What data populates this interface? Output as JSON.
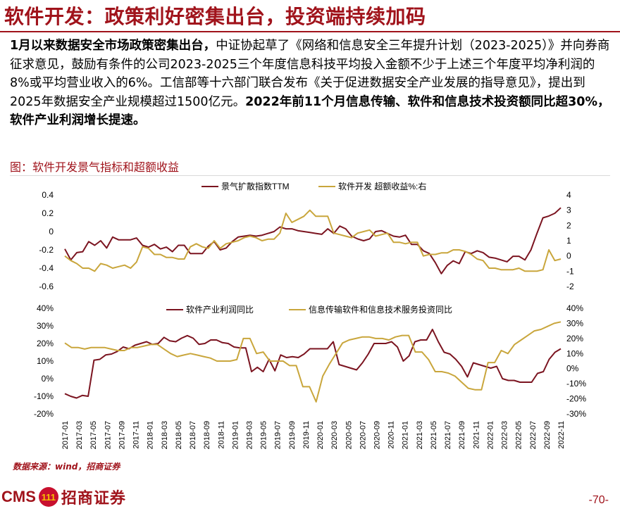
{
  "slide": {
    "title": "软件开发：政策利好密集出台，投资端持续加码",
    "paragraph": [
      {
        "text": "1月以来数据安全市场政策密集出台，",
        "bold": true
      },
      {
        "text": "中证协起草了《网络和信息安全三年提升计划（2023-2025）》并向券商征求意见，鼓励有条件的公司2023-2025三个年度信息科技平均投入金额不少于上述三个年度平均净利润的8%或平均营业收入的6%。工信部等十六部门联合发布《关于促进数据安全产业发展的指导意见》，提出到2025年数据安全产业规模超过1500亿元。",
        "bold": false
      },
      {
        "text": "2022年前11个月信息传输、软件和信息技术投资额同比超30%，软件产业利润增长提速。",
        "bold": true
      }
    ],
    "figure_label": "图：软件开发景气指标和超额收益",
    "source": "数据来源：wind，招商证券",
    "logo": {
      "cms": "CMS",
      "seal": "111",
      "cn": "招商证券"
    },
    "page_number": "-70-"
  },
  "colors": {
    "brand": "#a0131b",
    "series_dark": "#7b1420",
    "series_gold": "#c9a63c",
    "grid": "#d9d9d9"
  },
  "x_labels": [
    "2017-01",
    "2017-03",
    "2017-05",
    "2017-07",
    "2017-09",
    "2017-11",
    "2018-01",
    "2018-03",
    "2018-05",
    "2018-07",
    "2018-09",
    "2018-11",
    "2019-01",
    "2019-03",
    "2019-05",
    "2019-07",
    "2019-09",
    "2019-11",
    "2020-01",
    "2020-03",
    "2020-05",
    "2020-07",
    "2020-09",
    "2020-11",
    "2021-01",
    "2021-03",
    "2021-05",
    "2021-07",
    "2021-09",
    "2021-11",
    "2022-01",
    "2022-03",
    "2022-05",
    "2022-07",
    "2022-09",
    "2022-11"
  ],
  "chart_data": [
    {
      "type": "line",
      "yticks_left": [
        "0.4",
        "0.2",
        "0",
        "-0.2",
        "-0.4",
        "-0.6"
      ],
      "yticks_right": [
        "4",
        "3",
        "2",
        "1",
        "0",
        "-1",
        "-2"
      ],
      "ylim_left": [
        -0.6,
        0.4
      ],
      "ylim_right": [
        -2,
        4
      ],
      "legend": "top",
      "series": [
        {
          "name": "景气扩散指数TTM",
          "axis": "left",
          "color": "#7b1420",
          "values": [
            -0.19,
            -0.31,
            -0.23,
            -0.22,
            -0.11,
            -0.15,
            -0.1,
            -0.18,
            -0.06,
            -0.09,
            -0.09,
            -0.09,
            -0.07,
            -0.15,
            -0.17,
            -0.14,
            -0.19,
            -0.17,
            -0.22,
            -0.15,
            -0.15,
            -0.24,
            -0.24,
            -0.24,
            -0.16,
            -0.11,
            -0.2,
            -0.18,
            -0.11,
            -0.06,
            -0.05,
            -0.04,
            -0.05,
            -0.04,
            -0.02,
            0.0,
            0.05,
            0.03,
            0.03,
            0.01,
            0.0,
            -0.01,
            -0.02,
            -0.03,
            0.03,
            -0.02,
            0.06,
            0.03,
            -0.05,
            -0.08,
            -0.1,
            -0.08,
            0.0,
            0.01,
            -0.02,
            -0.05,
            -0.06,
            -0.04,
            -0.14,
            -0.14,
            -0.21,
            -0.24,
            -0.34,
            -0.46,
            -0.37,
            -0.32,
            -0.35,
            -0.22,
            -0.24,
            -0.21,
            -0.23,
            -0.28,
            -0.29,
            -0.31,
            -0.33,
            -0.27,
            -0.27,
            -0.31,
            -0.2,
            -0.02,
            0.15,
            0.17,
            0.2,
            0.26
          ]
        },
        {
          "name": "软件开发 超额收益%:右",
          "axis": "right",
          "color": "#c9a63c",
          "values": [
            0.0,
            -0.3,
            -0.5,
            -0.8,
            -0.8,
            -1.0,
            -0.5,
            -0.6,
            -0.8,
            -0.7,
            -0.6,
            -0.8,
            -0.4,
            0.6,
            0.5,
            0.1,
            0.1,
            -0.1,
            -0.1,
            -0.2,
            -0.2,
            0.6,
            0.8,
            0.6,
            0.5,
            1.0,
            0.5,
            0.8,
            0.9,
            1.0,
            1.2,
            1.3,
            1.2,
            1.0,
            1.1,
            1.1,
            1.5,
            2.8,
            2.2,
            2.4,
            2.6,
            3.0,
            2.6,
            2.6,
            2.6,
            1.5,
            1.4,
            1.3,
            1.2,
            1.5,
            1.6,
            1.7,
            1.3,
            1.4,
            1.5,
            0.9,
            0.9,
            0.8,
            0.9,
            0.9,
            0.0,
            0.1,
            0.1,
            0.2,
            0.2,
            0.4,
            0.4,
            0.3,
            0.1,
            -0.2,
            -0.3,
            -0.8,
            -0.8,
            -0.9,
            -0.9,
            -0.9,
            -0.8,
            -1.0,
            -1.0,
            -1.0,
            -0.9,
            0.4,
            -0.3,
            -0.2
          ]
        }
      ]
    },
    {
      "type": "line",
      "yticks_left": [
        "40%",
        "30%",
        "20%",
        "10%",
        "0%",
        "-10%",
        "-20%"
      ],
      "yticks_right": [
        "40%",
        "30%",
        "20%",
        "10%",
        "0%",
        "-10%",
        "-20%",
        "-30%"
      ],
      "ylim_left": [
        -20,
        40
      ],
      "ylim_right": [
        -30,
        40
      ],
      "legend": "top",
      "series": [
        {
          "name": "软件产业利润同比",
          "axis": "left",
          "color": "#7b1420",
          "values": [
            -8.5,
            -10,
            -11,
            -9.5,
            -10,
            10.5,
            11,
            13.5,
            14,
            15.5,
            18,
            17,
            19,
            20,
            21,
            19.5,
            20,
            23.5,
            21.5,
            21,
            23,
            24.5,
            23,
            19.5,
            20,
            22,
            22,
            20.5,
            20,
            18,
            17.5,
            17.5,
            4,
            6.5,
            4,
            11,
            4.5,
            13.5,
            12,
            12.5,
            12,
            14,
            17,
            17,
            17,
            17,
            21,
            8,
            7,
            6,
            5,
            9,
            14,
            20,
            20,
            20,
            21,
            18,
            10,
            13,
            21,
            22,
            22,
            28,
            21,
            15,
            14,
            11,
            7,
            1,
            9,
            8,
            7,
            6,
            7,
            0,
            -1,
            -1,
            -2,
            -2,
            -2,
            3,
            4,
            11,
            15,
            17
          ]
        },
        {
          "name": "信息传输软件和信息技术服务投资同比",
          "axis": "right",
          "color": "#c9a63c",
          "values": [
            17,
            14,
            14,
            13,
            14,
            14,
            14,
            13,
            12,
            12,
            14,
            14,
            15,
            16,
            16,
            13,
            10,
            8,
            9,
            10,
            9,
            8,
            7,
            5,
            5,
            5,
            6,
            20,
            20,
            10,
            11,
            5,
            5,
            5,
            2,
            2,
            -12,
            -12,
            -22,
            -5,
            3,
            10,
            17,
            19,
            20,
            21,
            21,
            20,
            20,
            19,
            21,
            22,
            22,
            11,
            11,
            6,
            -2,
            -2,
            -3,
            -5,
            -9,
            -13,
            -14,
            -14,
            4,
            4,
            12,
            10,
            16,
            19,
            22,
            25,
            26,
            28,
            30,
            31
          ]
        }
      ]
    }
  ]
}
